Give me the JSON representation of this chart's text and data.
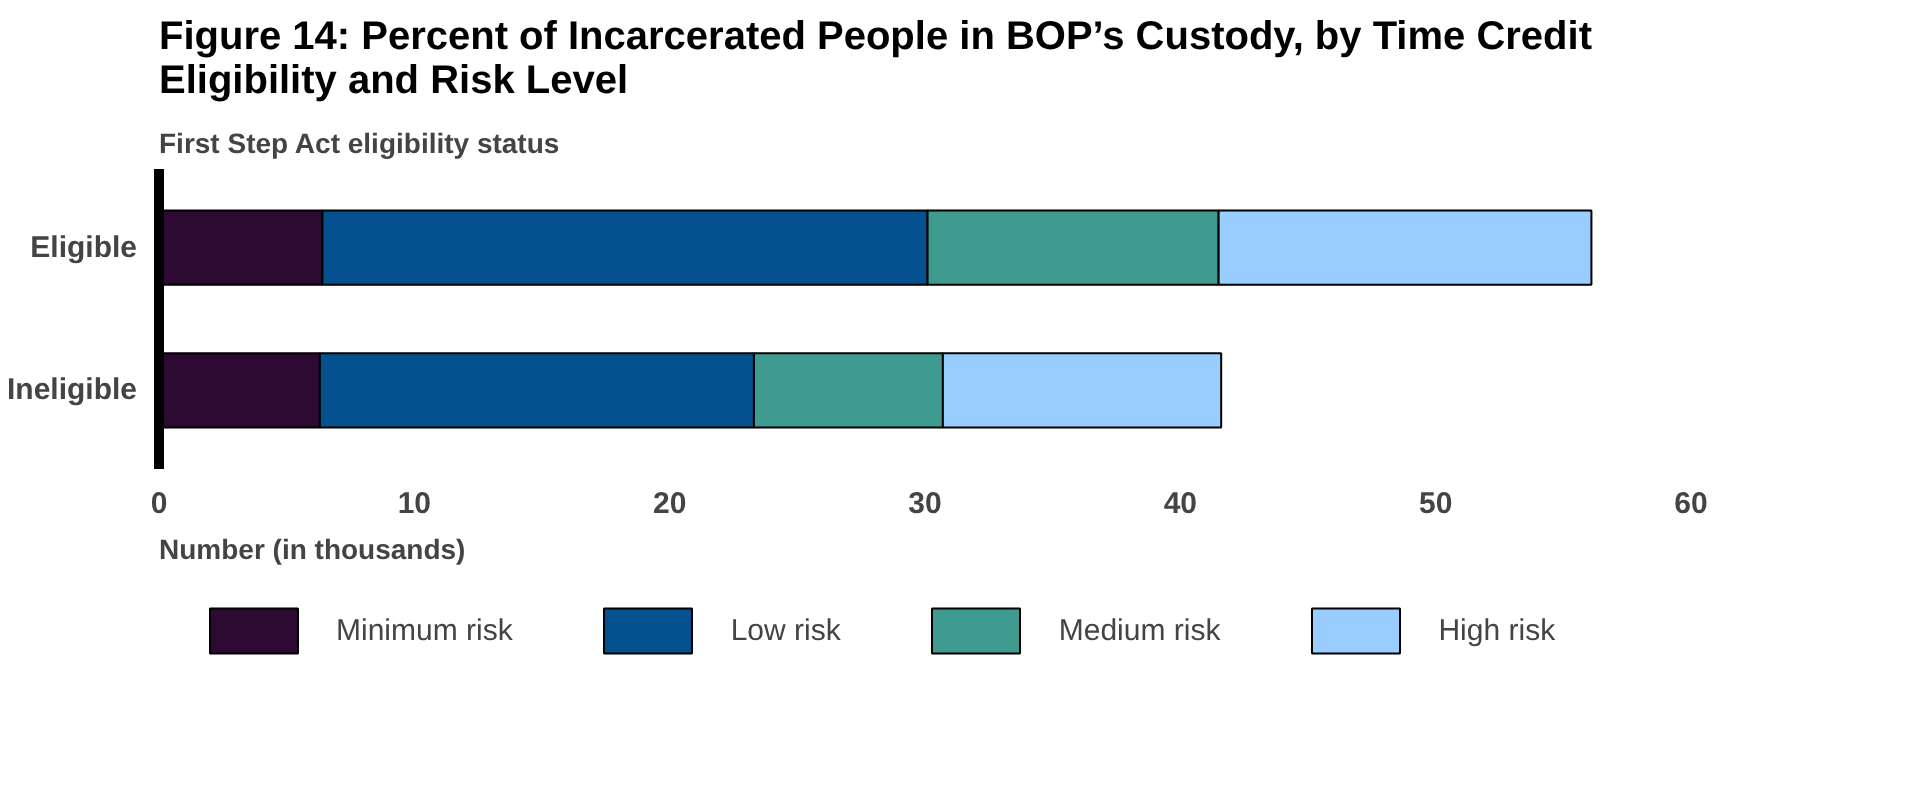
{
  "chart_data": {
    "type": "bar",
    "orientation": "horizontal",
    "stacked": true,
    "title": "Figure 14: Percent of Incarcerated People in BOP’s Custody, by Time Credit Eligibility and Risk Level",
    "ylabel": "First Step Act eligibility status",
    "xlabel": "Number (in thousands)",
    "categories": [
      "Eligible",
      "Ineligible"
    ],
    "series": [
      {
        "name": "Minimum risk",
        "color": "#2d0a31",
        "values": [
          6.4,
          6.3
        ]
      },
      {
        "name": "Low risk",
        "color": "#05508f",
        "values": [
          23.7,
          17.0
        ]
      },
      {
        "name": "Medium risk",
        "color": "#3f9a8f",
        "values": [
          11.4,
          7.4
        ]
      },
      {
        "name": "High risk",
        "color": "#99ccff",
        "values": [
          14.6,
          10.9
        ]
      }
    ],
    "xlim": [
      0,
      60
    ],
    "xticks": [
      0,
      10,
      20,
      30,
      40,
      50,
      60
    ],
    "grid": false,
    "legend": "bottom"
  }
}
